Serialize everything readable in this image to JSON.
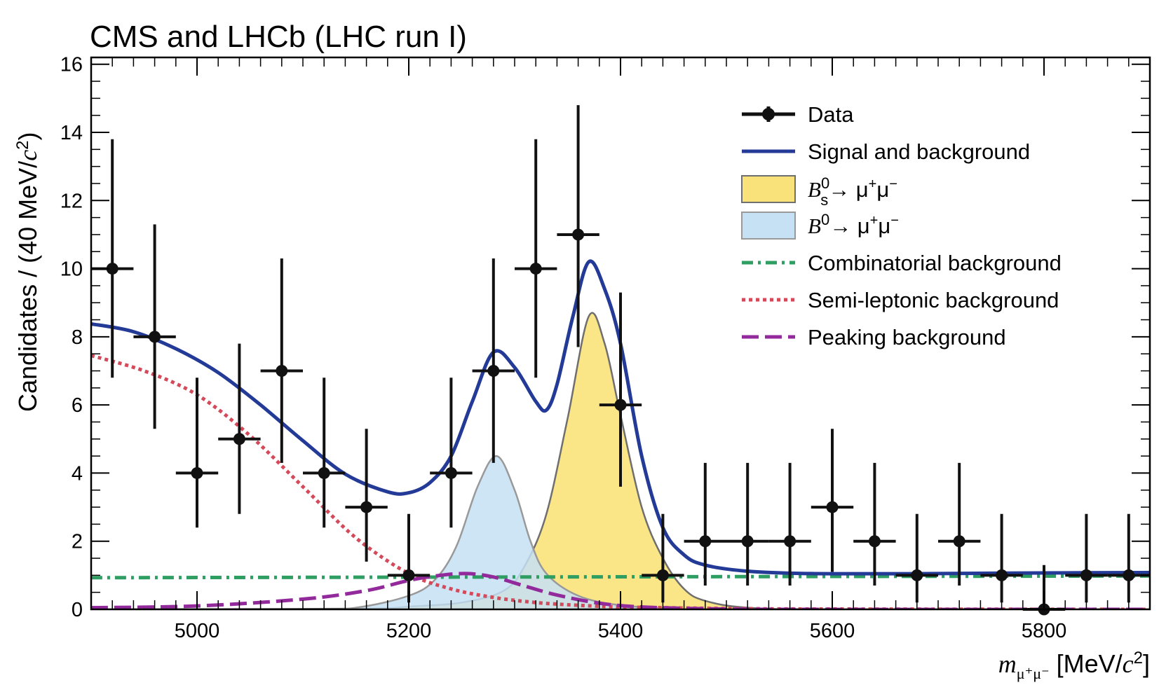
{
  "chart_data": {
    "type": "line",
    "title": "CMS and LHCb (LHC run I)",
    "xlabel": {
      "var": "m",
      "sub": "μ⁺μ⁻",
      "unit": " [MeV/",
      "unit_var": "c",
      "unit_exp": "2",
      "unit_close": "]"
    },
    "ylabel": {
      "main": "Candidates / (40 MeV/",
      "var": "c",
      "exp": "2",
      "close": ")"
    },
    "xlim": [
      4900,
      5900
    ],
    "ylim": [
      0,
      16.2
    ],
    "x_ticks": [
      5000,
      5200,
      5400,
      5600,
      5800
    ],
    "y_ticks": [
      0,
      2,
      4,
      6,
      8,
      10,
      12,
      14,
      16
    ],
    "legend_position": "top-right",
    "colors": {
      "data": "#111111",
      "total": "#233a97",
      "bs_fill": "#f9e27a",
      "bs_edge": "#6f6f6f",
      "bd_fill": "#c6e0f4",
      "bd_edge": "#999999",
      "combinatorial": "#2e9e62",
      "semileptonic": "#d44a5a",
      "peaking": "#932a9c"
    },
    "legend": {
      "data": "Data",
      "total": "Signal and background",
      "bs": {
        "B": "B",
        "sub": "s",
        "sup": "0",
        "arrow": "→ μ",
        "p1": "+",
        "mu2": "μ",
        "p2": "−"
      },
      "bd": {
        "B": "B",
        "sup": "0",
        "arrow": "→ μ",
        "p1": "+",
        "mu2": "μ",
        "p2": "−"
      },
      "combinatorial": "Combinatorial background",
      "semileptonic": "Semi-leptonic background",
      "peaking": "Peaking background"
    },
    "data_points": [
      {
        "x": 4920,
        "y": 10,
        "eyl": 3.2,
        "eyh": 3.8
      },
      {
        "x": 4960,
        "y": 8,
        "eyl": 2.7,
        "eyh": 3.3
      },
      {
        "x": 5000,
        "y": 4,
        "eyl": 1.6,
        "eyh": 2.8
      },
      {
        "x": 5040,
        "y": 5,
        "eyl": 2.2,
        "eyh": 2.8
      },
      {
        "x": 5080,
        "y": 7,
        "eyl": 2.7,
        "eyh": 3.3
      },
      {
        "x": 5120,
        "y": 4,
        "eyl": 1.6,
        "eyh": 2.8
      },
      {
        "x": 5160,
        "y": 3,
        "eyl": 1.6,
        "eyh": 2.3
      },
      {
        "x": 5200,
        "y": 1,
        "eyl": 0.8,
        "eyh": 1.8
      },
      {
        "x": 5240,
        "y": 4,
        "eyl": 1.6,
        "eyh": 2.8
      },
      {
        "x": 5280,
        "y": 7,
        "eyl": 2.7,
        "eyh": 3.3
      },
      {
        "x": 5320,
        "y": 10,
        "eyl": 3.2,
        "eyh": 3.8
      },
      {
        "x": 5360,
        "y": 11,
        "eyl": 3.3,
        "eyh": 3.8
      },
      {
        "x": 5400,
        "y": 6,
        "eyl": 2.4,
        "eyh": 3.3
      },
      {
        "x": 5440,
        "y": 1,
        "eyl": 0.8,
        "eyh": 1.8
      },
      {
        "x": 5480,
        "y": 2,
        "eyl": 1.3,
        "eyh": 2.3
      },
      {
        "x": 5520,
        "y": 2,
        "eyl": 1.3,
        "eyh": 2.3
      },
      {
        "x": 5560,
        "y": 2,
        "eyl": 1.3,
        "eyh": 2.3
      },
      {
        "x": 5600,
        "y": 3,
        "eyl": 1.9,
        "eyh": 2.3
      },
      {
        "x": 5640,
        "y": 2,
        "eyl": 1.3,
        "eyh": 2.3
      },
      {
        "x": 5680,
        "y": 1,
        "eyl": 0.8,
        "eyh": 1.8
      },
      {
        "x": 5720,
        "y": 2,
        "eyl": 1.3,
        "eyh": 2.3
      },
      {
        "x": 5760,
        "y": 1,
        "eyl": 0.8,
        "eyh": 1.8
      },
      {
        "x": 5800,
        "y": 0,
        "eyl": 0,
        "eyh": 1.3
      },
      {
        "x": 5840,
        "y": 1,
        "eyl": 0.8,
        "eyh": 1.8
      },
      {
        "x": 5880,
        "y": 1,
        "eyl": 0.8,
        "eyh": 1.8
      }
    ],
    "x_half_width": 20,
    "curves": {
      "total": [
        [
          4900,
          8.38
        ],
        [
          4940,
          8.15
        ],
        [
          4980,
          7.65
        ],
        [
          5020,
          6.95
        ],
        [
          5060,
          6.0
        ],
        [
          5100,
          4.95
        ],
        [
          5140,
          3.97
        ],
        [
          5180,
          3.45
        ],
        [
          5200,
          3.42
        ],
        [
          5220,
          3.72
        ],
        [
          5240,
          4.5
        ],
        [
          5260,
          6.1
        ],
        [
          5280,
          7.55
        ],
        [
          5300,
          7.1
        ],
        [
          5320,
          6.1
        ],
        [
          5330,
          5.85
        ],
        [
          5340,
          6.6
        ],
        [
          5355,
          8.6
        ],
        [
          5370,
          10.2
        ],
        [
          5385,
          9.4
        ],
        [
          5400,
          7.8
        ],
        [
          5420,
          4.5
        ],
        [
          5440,
          2.4
        ],
        [
          5460,
          1.6
        ],
        [
          5480,
          1.3
        ],
        [
          5520,
          1.12
        ],
        [
          5580,
          1.05
        ],
        [
          5700,
          1.05
        ],
        [
          5800,
          1.07
        ],
        [
          5900,
          1.08
        ]
      ],
      "bs": [
        [
          4900,
          0
        ],
        [
          5150,
          0.02
        ],
        [
          5200,
          0.08
        ],
        [
          5250,
          0.2
        ],
        [
          5290,
          0.55
        ],
        [
          5310,
          1.3
        ],
        [
          5330,
          2.8
        ],
        [
          5350,
          5.6
        ],
        [
          5370,
          8.6
        ],
        [
          5385,
          7.8
        ],
        [
          5400,
          5.7
        ],
        [
          5420,
          3.0
        ],
        [
          5440,
          1.5
        ],
        [
          5460,
          0.6
        ],
        [
          5480,
          0.25
        ],
        [
          5520,
          0.05
        ],
        [
          5600,
          0
        ],
        [
          5900,
          0
        ]
      ],
      "bd": [
        [
          4900,
          0
        ],
        [
          5100,
          0
        ],
        [
          5150,
          0.05
        ],
        [
          5200,
          0.4
        ],
        [
          5225,
          0.88
        ],
        [
          5245,
          1.85
        ],
        [
          5265,
          3.6
        ],
        [
          5283,
          4.5
        ],
        [
          5300,
          3.5
        ],
        [
          5315,
          2.0
        ],
        [
          5330,
          1.05
        ],
        [
          5360,
          0.4
        ],
        [
          5400,
          0.12
        ],
        [
          5450,
          0.03
        ],
        [
          5500,
          0
        ],
        [
          5900,
          0
        ]
      ],
      "semileptonic": [
        [
          4900,
          7.45
        ],
        [
          4950,
          7.0
        ],
        [
          5000,
          6.3
        ],
        [
          5050,
          5.1
        ],
        [
          5100,
          3.6
        ],
        [
          5150,
          2.1
        ],
        [
          5200,
          1.05
        ],
        [
          5240,
          0.6
        ],
        [
          5280,
          0.35
        ],
        [
          5320,
          0.2
        ],
        [
          5360,
          0.12
        ],
        [
          5400,
          0.07
        ],
        [
          5460,
          0.04
        ],
        [
          5520,
          0.02
        ],
        [
          5600,
          0.01
        ],
        [
          5900,
          0
        ]
      ],
      "combinatorial": [
        [
          4900,
          0.93
        ],
        [
          5900,
          0.98
        ]
      ],
      "peaking": [
        [
          4900,
          0.05
        ],
        [
          5000,
          0.1
        ],
        [
          5100,
          0.3
        ],
        [
          5160,
          0.55
        ],
        [
          5200,
          0.85
        ],
        [
          5230,
          1.0
        ],
        [
          5255,
          1.05
        ],
        [
          5280,
          0.95
        ],
        [
          5310,
          0.68
        ],
        [
          5340,
          0.42
        ],
        [
          5380,
          0.18
        ],
        [
          5420,
          0.07
        ],
        [
          5480,
          0.02
        ],
        [
          5560,
          0
        ],
        [
          5900,
          0
        ]
      ]
    }
  }
}
